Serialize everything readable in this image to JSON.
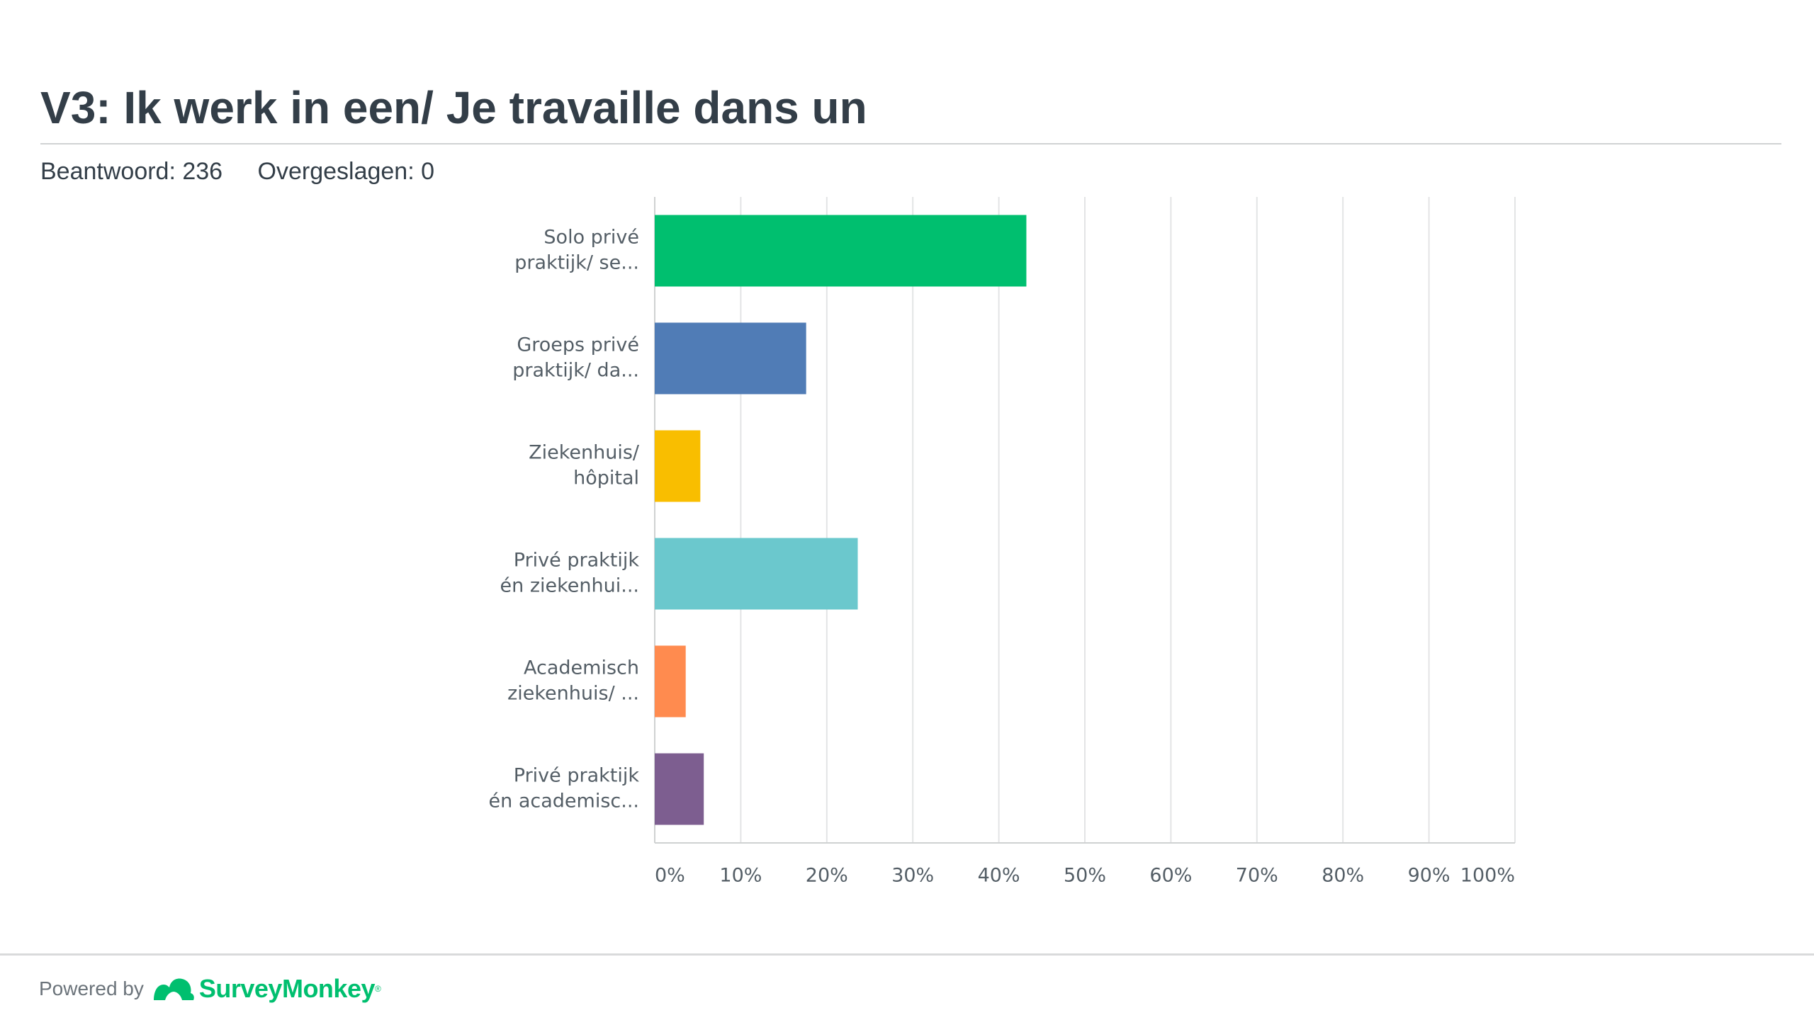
{
  "header": {
    "title": "V3: Ik werk in een/ Je travaille dans un",
    "answered": "Beantwoord: 236",
    "skipped": "Overgeslagen: 0"
  },
  "footer": {
    "powered_by": "Powered by",
    "brand": "SurveyMonkey",
    "brand_mark": "®",
    "brand_icon": "surveymonkey-logo-icon"
  },
  "chart_data": {
    "type": "bar",
    "orientation": "horizontal",
    "categories": [
      [
        "Solo privé",
        "praktijk/ se..."
      ],
      [
        "Groeps privé",
        "praktijk/ da..."
      ],
      [
        "Ziekenhuis/",
        "hôpital"
      ],
      [
        "Privé praktijk",
        "én ziekenhui..."
      ],
      [
        "Academisch",
        "ziekenhuis/ ..."
      ],
      [
        "Privé praktijk",
        "én academisc..."
      ]
    ],
    "values": [
      43.2,
      17.6,
      5.3,
      23.6,
      3.6,
      5.7
    ],
    "colors": [
      "#00bf6f",
      "#507cb6",
      "#f9be00",
      "#6bc8cd",
      "#ff8b4f",
      "#7d5e90"
    ],
    "xlim": [
      0,
      100
    ],
    "xticks": [
      "0%",
      "10%",
      "20%",
      "30%",
      "40%",
      "50%",
      "60%",
      "70%",
      "80%",
      "90%",
      "100%"
    ],
    "grid": true
  }
}
